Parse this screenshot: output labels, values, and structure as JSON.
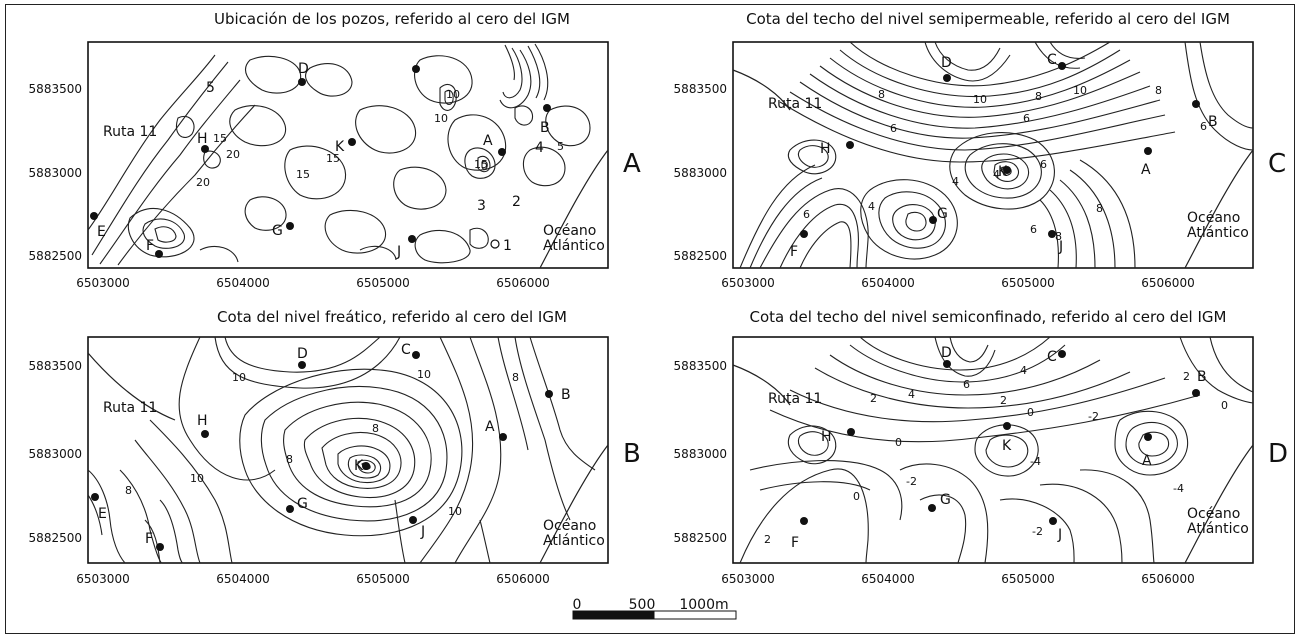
{
  "panels": {
    "A": {
      "letter": "A",
      "title": "Ubicación de los pozos, referido al cero del IGM",
      "route": "Ruta 11",
      "ocean": [
        "Océano",
        "Atlántico"
      ],
      "contour_labels": [
        "15",
        "20",
        "15",
        "15",
        "20",
        "10",
        "10",
        "15",
        "5"
      ],
      "wells": [
        "D",
        "H",
        "K",
        "A",
        "B",
        "E",
        "F",
        "G",
        "J"
      ],
      "points": [
        "1",
        "2",
        "3",
        "4",
        "5"
      ]
    },
    "B": {
      "letter": "B",
      "title": "Cota del nivel freático, referido al cero del IGM",
      "route": "Ruta 11",
      "ocean": [
        "Océano",
        "Atlántico"
      ],
      "contour_labels": [
        "10",
        "10",
        "8",
        "8",
        "8",
        "10",
        "8",
        "10"
      ],
      "wells": [
        "D",
        "C",
        "H",
        "K",
        "A",
        "B",
        "E",
        "F",
        "G",
        "J"
      ]
    },
    "C": {
      "letter": "C",
      "title": "Cota del techo del nivel semipermeable, referido al cero del IGM",
      "route": "Ruta 11",
      "ocean": [
        "Océano",
        "Atlántico"
      ],
      "contour_labels": [
        "8",
        "10",
        "8",
        "10",
        "8",
        "6",
        "6",
        "6",
        "4",
        "4",
        "4",
        "6",
        "6",
        "8",
        "8",
        "6"
      ],
      "wells": [
        "D",
        "C",
        "H",
        "K",
        "A",
        "B",
        "F",
        "G",
        "J"
      ]
    },
    "D": {
      "letter": "D",
      "title": "Cota del techo del nivel semiconfinado, referido al cero del IGM",
      "route": "Ruta 11",
      "ocean": [
        "Océano",
        "Atlántico"
      ],
      "contour_labels": [
        "4",
        "6",
        "2",
        "4",
        "2",
        "0",
        "-2",
        "2",
        "0",
        "0",
        "-4",
        "-4",
        "0",
        "-2",
        "2",
        "-2"
      ],
      "wells": [
        "D",
        "C",
        "H",
        "K",
        "A",
        "B",
        "F",
        "G",
        "J"
      ]
    }
  },
  "axes": {
    "x_ticks": [
      "6503000",
      "6504000",
      "6505000",
      "6506000"
    ],
    "y_ticks": [
      "5883500",
      "5883000",
      "5882500"
    ]
  },
  "scale_bar": {
    "labels": [
      "0",
      "500",
      "1000m"
    ]
  }
}
